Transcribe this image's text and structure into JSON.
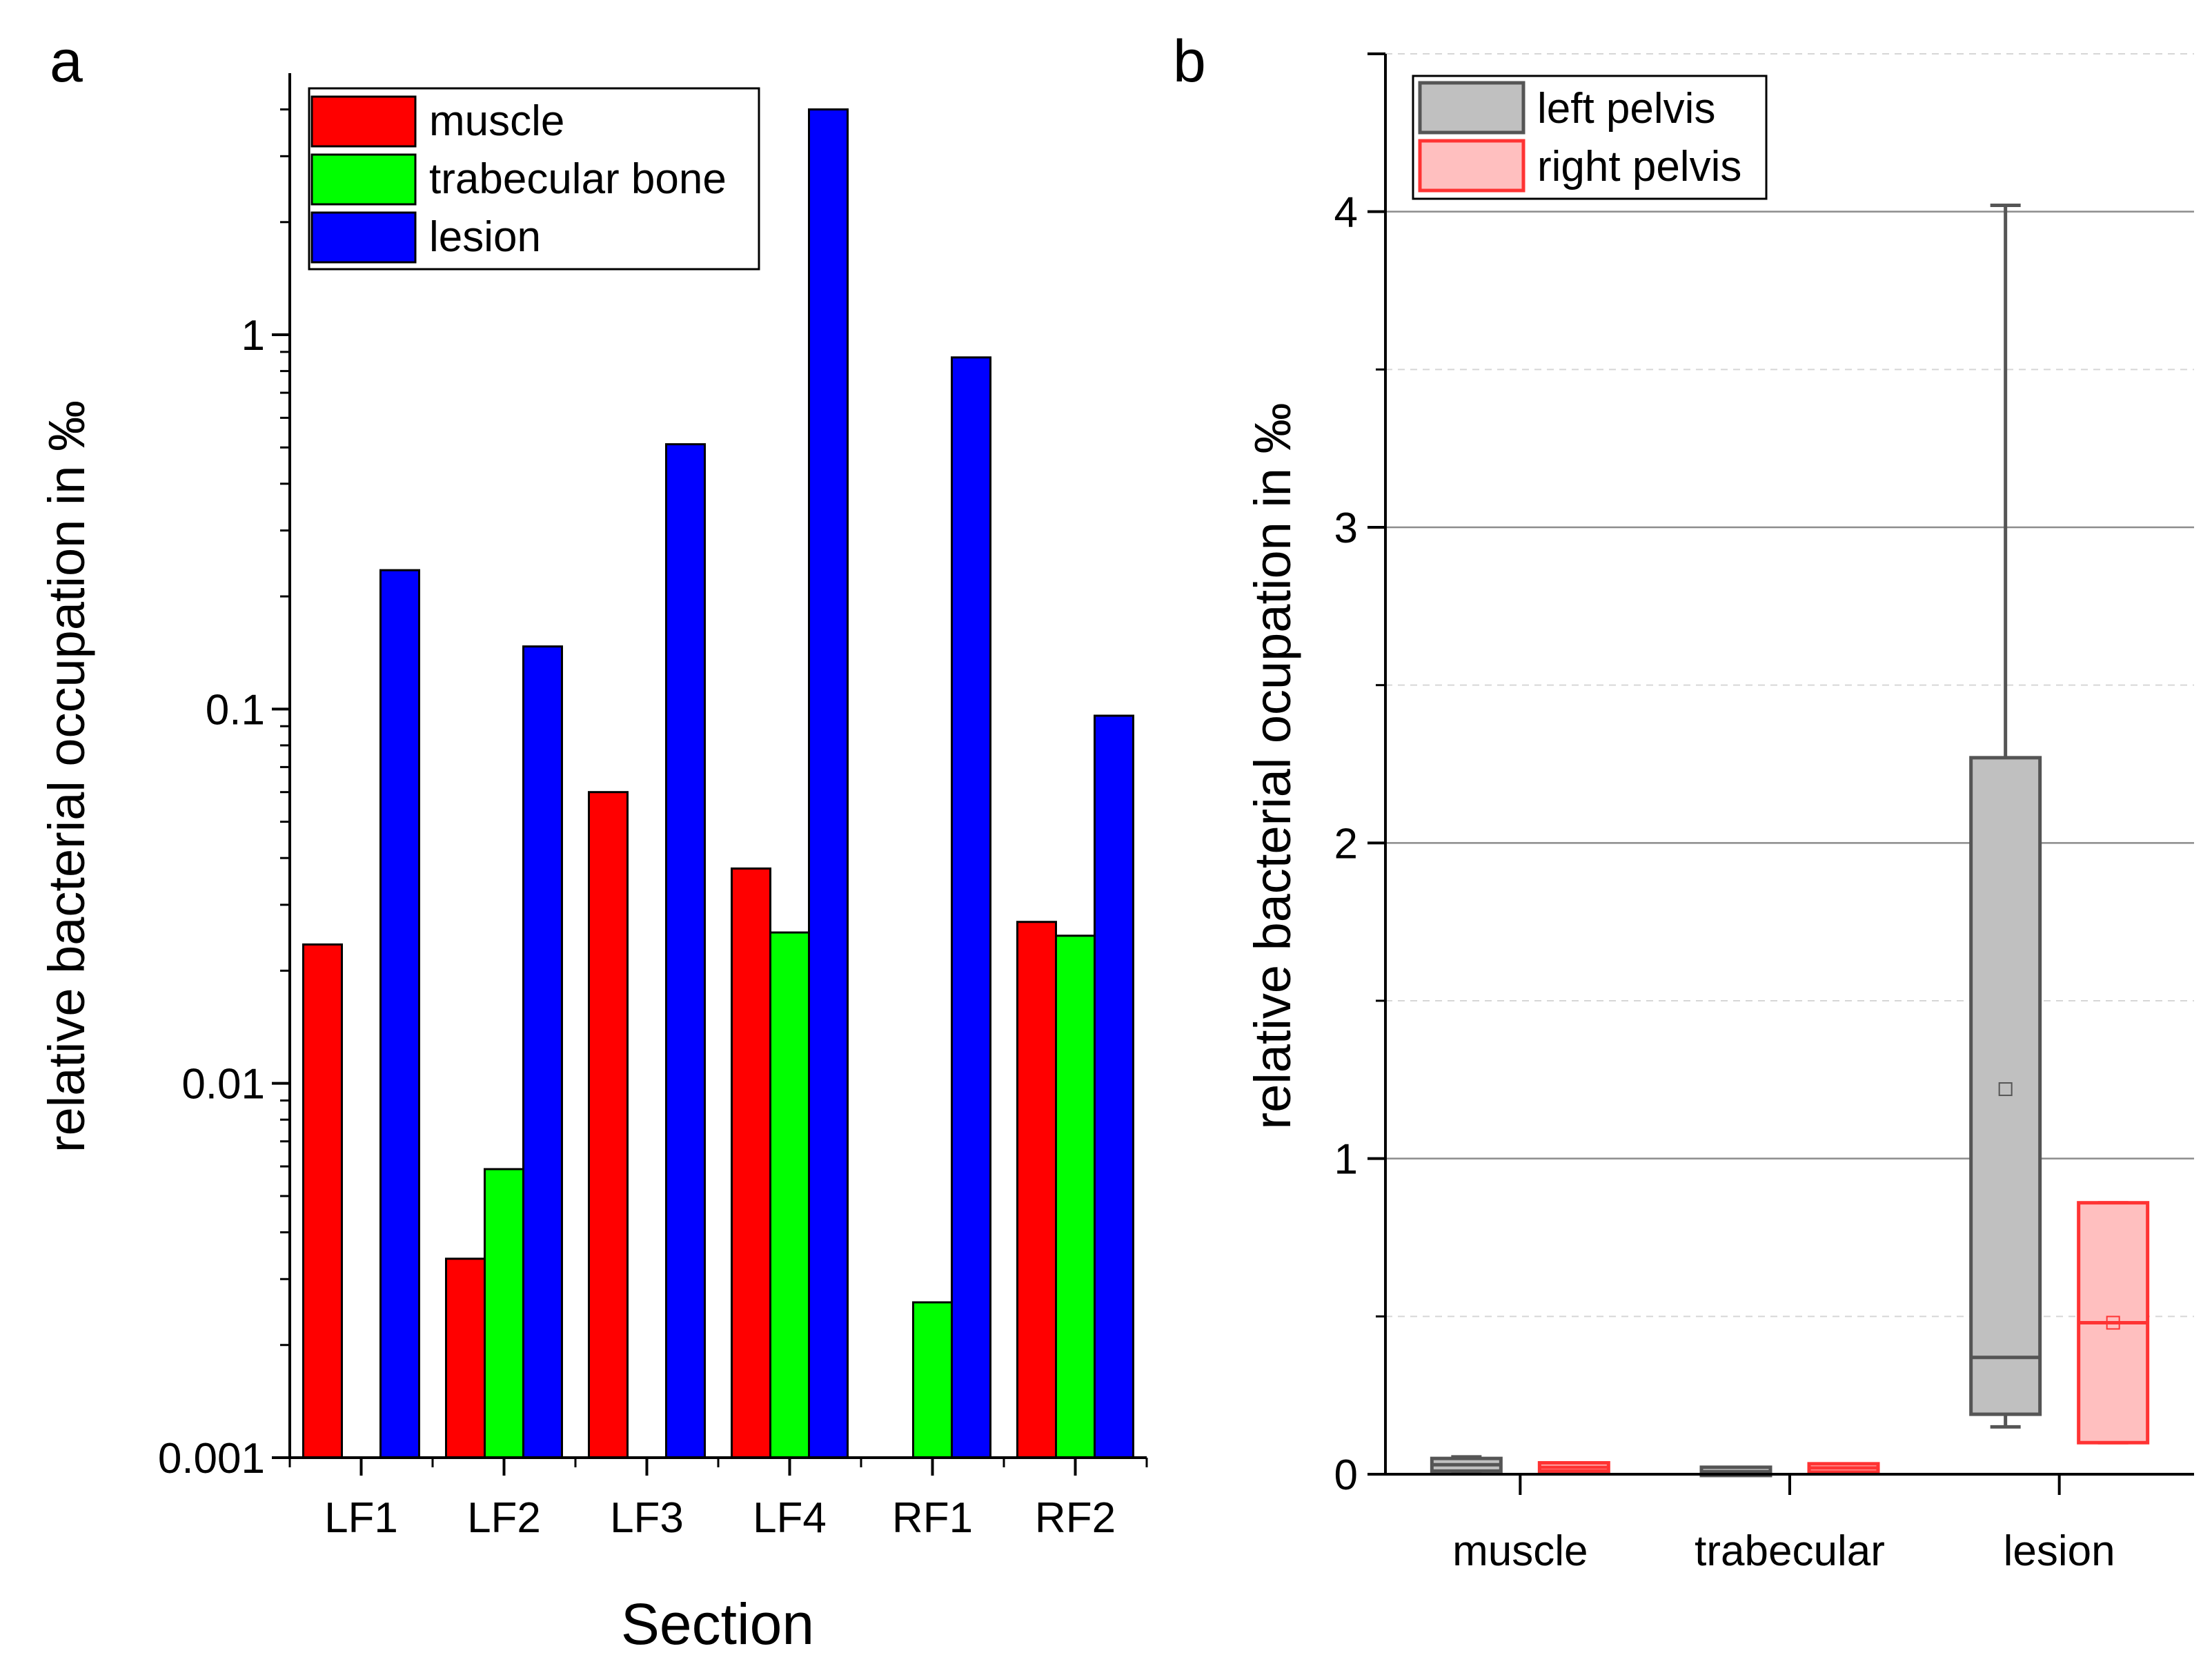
{
  "figure": {
    "panels": [
      "a",
      "b"
    ]
  },
  "chart_data": [
    {
      "id": "a",
      "type": "bar",
      "yscale": "log",
      "title": "",
      "xlabel": "Section",
      "ylabel": "relative bacterial occupation in ‰",
      "ylim": [
        0.001,
        5
      ],
      "yticks": [
        0.001,
        0.01,
        0.1,
        1
      ],
      "ytick_labels": [
        "0.001",
        "0.01",
        "0.1",
        "1"
      ],
      "categories": [
        "LF1",
        "LF2",
        "LF3",
        "LF4",
        "RF1",
        "RF2"
      ],
      "series": [
        {
          "name": "muscle",
          "color": "#ff0000",
          "values": [
            0.0235,
            0.0034,
            0.06,
            0.0375,
            null,
            0.027
          ]
        },
        {
          "name": "trabecular bone",
          "color": "#00ff00",
          "values": [
            null,
            0.0059,
            null,
            0.0253,
            0.0026,
            0.0248
          ]
        },
        {
          "name": "lesion",
          "color": "#0000ff",
          "values": [
            0.235,
            0.147,
            0.51,
            4.0,
            0.87,
            0.096
          ]
        }
      ],
      "legend": {
        "position": "top-left",
        "entries": [
          "muscle",
          "trabecular bone",
          "lesion"
        ]
      }
    },
    {
      "id": "b",
      "type": "box",
      "title": "",
      "xlabel": "",
      "ylabel": "relative bacterial ocupation in ‰",
      "ylim": [
        0,
        4.5
      ],
      "yticks": [
        0,
        1,
        2,
        3,
        4
      ],
      "ytick_labels": [
        "0",
        "1",
        "2",
        "3",
        "4"
      ],
      "grid": true,
      "categories": [
        "muscle",
        "trabecular",
        "lesion"
      ],
      "series": [
        {
          "name": "left pelvis",
          "stroke": "#555555",
          "fill": "#c0c0c0",
          "boxes": [
            {
              "whisker_low": 0.005,
              "q1": 0.01,
              "median": 0.03,
              "q3": 0.05,
              "whisker_high": 0.055,
              "mean": 0.03
            },
            {
              "whisker_low": 0.0,
              "q1": 0.003,
              "median": 0.008,
              "q3": 0.015,
              "whisker_high": 0.02,
              "mean": 0.008
            },
            {
              "whisker_low": 0.15,
              "q1": 0.19,
              "median": 0.37,
              "q3": 2.27,
              "whisker_high": 4.02,
              "mean": 1.22
            }
          ]
        },
        {
          "name": "right pelvis",
          "stroke": "#ff3333",
          "fill": "#ffbfbf",
          "boxes": [
            {
              "whisker_low": 0.015,
              "q1": 0.018,
              "median": 0.022,
              "q3": 0.028,
              "whisker_high": 0.03,
              "mean": 0.022
            },
            {
              "whisker_low": 0.012,
              "q1": 0.015,
              "median": 0.02,
              "q3": 0.025,
              "whisker_high": 0.027,
              "mean": 0.02
            },
            {
              "whisker_low": 0.1,
              "q1": 0.1,
              "median": 0.48,
              "q3": 0.86,
              "whisker_high": 0.86,
              "mean": 0.48
            }
          ]
        }
      ],
      "legend": {
        "position": "top-left",
        "entries": [
          "left pelvis",
          "right pelvis"
        ]
      }
    }
  ]
}
